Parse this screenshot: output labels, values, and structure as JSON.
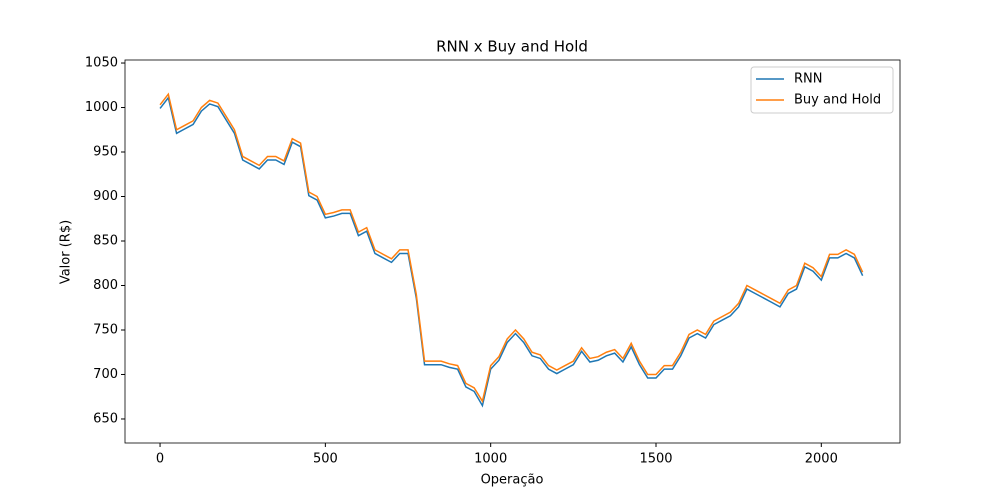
{
  "chart_data": {
    "type": "line",
    "title": "RNN x Buy and Hold",
    "xlabel": "Operação",
    "ylabel": "Valor (R$)",
    "x": [
      0,
      25,
      50,
      75,
      100,
      125,
      150,
      175,
      200,
      225,
      250,
      275,
      300,
      325,
      350,
      375,
      400,
      425,
      450,
      475,
      500,
      525,
      550,
      575,
      600,
      625,
      650,
      675,
      700,
      725,
      750,
      775,
      800,
      825,
      850,
      875,
      900,
      925,
      950,
      975,
      1000,
      1025,
      1050,
      1075,
      1100,
      1125,
      1150,
      1175,
      1200,
      1225,
      1250,
      1275,
      1300,
      1325,
      1350,
      1375,
      1400,
      1425,
      1450,
      1475,
      1500,
      1525,
      1550,
      1575,
      1600,
      1625,
      1650,
      1675,
      1700,
      1725,
      1750,
      1775,
      1800,
      1825,
      1850,
      1875,
      1900,
      1925,
      1950,
      1975,
      2000,
      2025,
      2050,
      2075,
      2100,
      2125
    ],
    "series": [
      {
        "name": "RNN",
        "color": "#1f77b4",
        "values": [
          999,
          1011,
          971,
          976,
          981,
          996,
          1004,
          1001,
          986,
          971,
          941,
          936,
          931,
          941,
          941,
          936,
          961,
          956,
          901,
          896,
          876,
          878,
          881,
          881,
          856,
          861,
          836,
          831,
          826,
          836,
          836,
          786,
          711,
          711,
          711,
          708,
          706,
          686,
          681,
          665,
          706,
          716,
          736,
          746,
          736,
          721,
          718,
          706,
          701,
          706,
          711,
          726,
          714,
          716,
          721,
          724,
          714,
          731,
          711,
          696,
          696,
          706,
          706,
          721,
          741,
          746,
          741,
          756,
          761,
          766,
          776,
          796,
          791,
          786,
          781,
          776,
          791,
          796,
          821,
          816,
          806,
          831,
          831,
          836,
          831,
          811
        ]
      },
      {
        "name": "Buy and Hold",
        "color": "#ff7f0e",
        "values": [
          1003,
          1015,
          975,
          980,
          985,
          1000,
          1008,
          1005,
          990,
          975,
          945,
          940,
          935,
          945,
          945,
          940,
          965,
          960,
          905,
          900,
          880,
          882,
          885,
          885,
          860,
          865,
          840,
          835,
          830,
          840,
          840,
          790,
          715,
          715,
          715,
          712,
          710,
          690,
          685,
          670,
          710,
          720,
          740,
          750,
          740,
          725,
          722,
          710,
          705,
          710,
          715,
          730,
          718,
          720,
          725,
          728,
          718,
          735,
          715,
          700,
          700,
          710,
          710,
          725,
          745,
          750,
          745,
          760,
          765,
          770,
          780,
          800,
          795,
          790,
          785,
          780,
          795,
          800,
          825,
          820,
          810,
          835,
          835,
          840,
          835,
          815
        ]
      }
    ],
    "xlim": [
      -106,
      2238
    ],
    "ylim": [
      623,
      1053.4
    ],
    "xticks": [
      0,
      500,
      1000,
      1500,
      2000
    ],
    "yticks": [
      650,
      700,
      750,
      800,
      850,
      900,
      950,
      1000,
      1050
    ],
    "legend": "upper right"
  }
}
